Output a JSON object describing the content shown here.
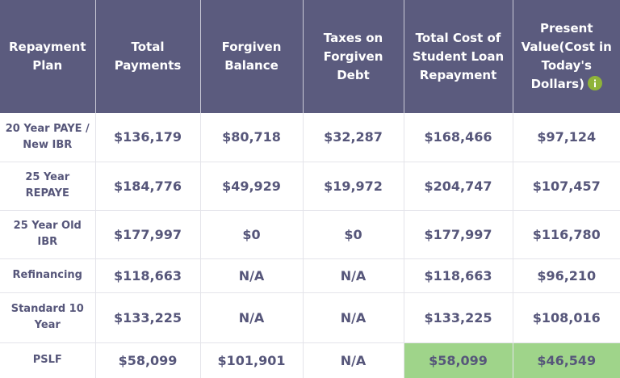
{
  "table": {
    "columns": [
      "Repayment Plan",
      "Total Payments",
      "Forgiven Balance",
      "Taxes on Forgiven Debt",
      "Total Cost of Student Loan Repayment",
      "Present Value(Cost in Today's Dollars)"
    ],
    "rows": [
      [
        "20 Year PAYE / New IBR",
        "$136,179",
        "$80,718",
        "$32,287",
        "$168,466",
        "$97,124"
      ],
      [
        "25 Year REPAYE",
        "$184,776",
        "$49,929",
        "$19,972",
        "$204,747",
        "$107,457"
      ],
      [
        "25 Year Old IBR",
        "$177,997",
        "$0",
        "$0",
        "$177,997",
        "$116,780"
      ],
      [
        "Refinancing",
        "$118,663",
        "N/A",
        "N/A",
        "$118,663",
        "$96,210"
      ],
      [
        "Standard 10 Year",
        "$133,225",
        "N/A",
        "N/A",
        "$133,225",
        "$108,016"
      ],
      [
        "PSLF",
        "$58,099",
        "$101,901",
        "N/A",
        "$58,099",
        "$46,549"
      ]
    ]
  }
}
